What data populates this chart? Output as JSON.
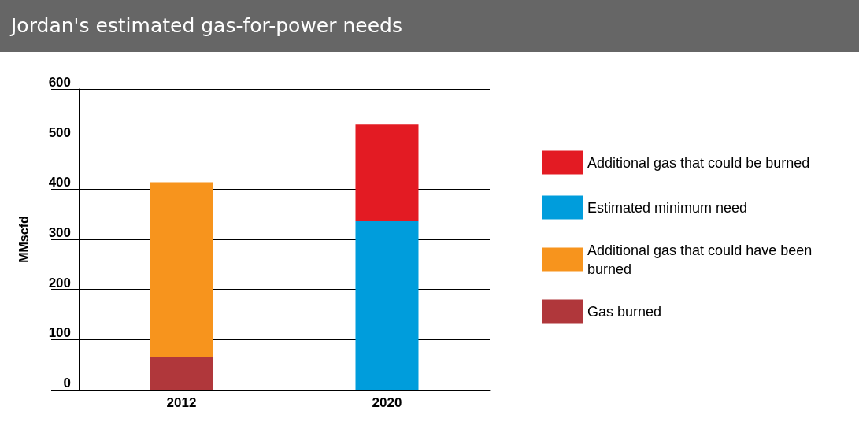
{
  "chart_data": {
    "type": "bar",
    "title": "Jordan's estimated gas-for-power needs",
    "ylabel": "MMscfd",
    "categories": [
      "2012",
      "2020"
    ],
    "stacked": true,
    "series": [
      {
        "name": "Gas burned",
        "color": "#b0373b",
        "values": [
          66,
          null
        ]
      },
      {
        "name": "Additional gas that could have been burned",
        "color": "#f7941d",
        "values": [
          348,
          null
        ]
      },
      {
        "name": "Estimated minimum need",
        "color": "#009ddc",
        "values": [
          null,
          336
        ]
      },
      {
        "name": "Additional gas that could be burned",
        "color": "#e31b23",
        "values": [
          null,
          193
        ]
      }
    ],
    "ylim": [
      0,
      600
    ],
    "yticks": [
      0,
      100,
      200,
      300,
      400,
      500,
      600
    ],
    "grid": "y",
    "legend": "right"
  }
}
